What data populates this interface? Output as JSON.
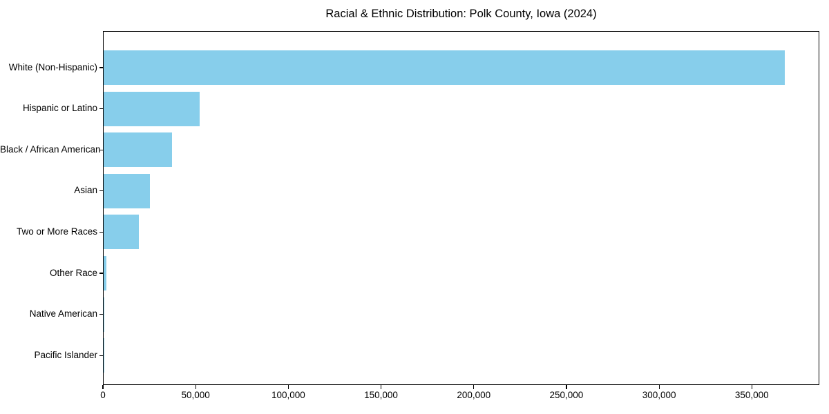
{
  "chart_data": {
    "type": "bar",
    "orientation": "horizontal",
    "title": "Racial & Ethnic Distribution: Polk County, Iowa (2024)",
    "categories": [
      "White (Non-Hispanic)",
      "Hispanic or Latino",
      "Black / African American",
      "Asian",
      "Two or More Races",
      "Other Race",
      "Native American",
      "Pacific Islander"
    ],
    "values": [
      368000,
      52000,
      37000,
      25000,
      19000,
      1600,
      300,
      150
    ],
    "xlabel": "",
    "ylabel": "",
    "xlim": [
      0,
      386400
    ],
    "xticks": [
      0,
      50000,
      100000,
      150000,
      200000,
      250000,
      300000,
      350000
    ],
    "xtick_labels": [
      "0",
      "50,000",
      "100,000",
      "150,000",
      "200,000",
      "250,000",
      "300,000",
      "350,000"
    ],
    "bar_color": "#87CEEB",
    "axis_color": "#000000",
    "background_color": "#FFFFFF",
    "grid": false,
    "legend_position": "none"
  }
}
